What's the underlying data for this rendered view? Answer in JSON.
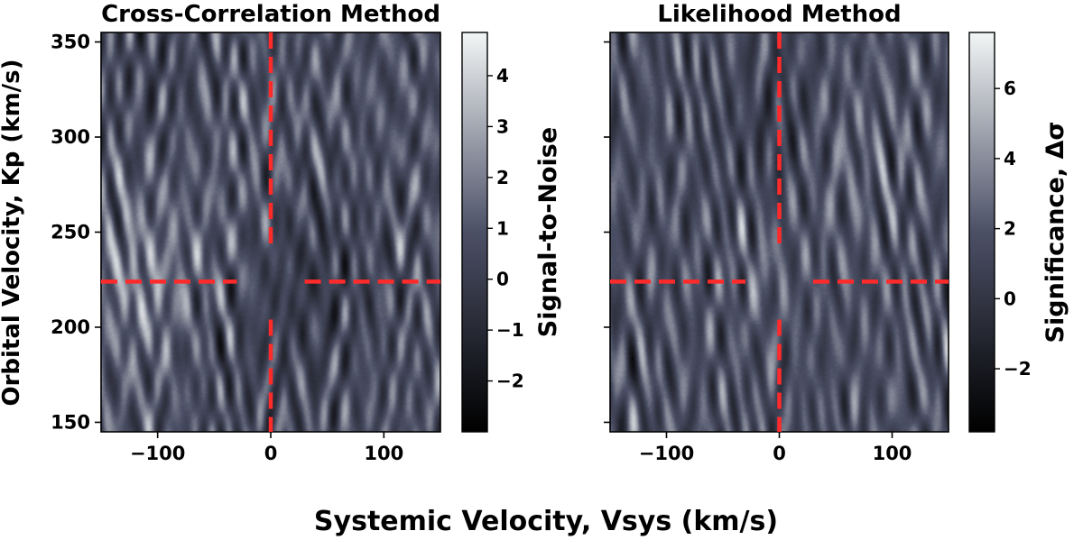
{
  "figure": {
    "xlabel": "Systemic Velocity, Vsys (km/s)",
    "ylabel": "Orbital Velocity, Kp (km/s)"
  },
  "colors": {
    "marker": "#ff2a2a",
    "cmap_dark": "#000000",
    "cmap_mid": "#4c5066",
    "cmap_light": "#f2f6f6"
  },
  "chart_data": [
    {
      "type": "heatmap",
      "title": "Cross-Correlation Method",
      "xlim": [
        -150,
        150
      ],
      "ylim": [
        145,
        355
      ],
      "xticks": [
        -100,
        0,
        100
      ],
      "xtick_labels": [
        "−100",
        "0",
        "100"
      ],
      "yticks": [
        150,
        200,
        250,
        300,
        350
      ],
      "ytick_labels": [
        "150",
        "200",
        "250",
        "300",
        "350"
      ],
      "marker": {
        "vsys": 0,
        "kp": 224,
        "gap_vsys": 30,
        "gap_kp": 20
      },
      "colorbar": {
        "label": "Signal-to-Noise",
        "min": -3.0,
        "max": 4.85,
        "ticks": [
          -2,
          -1,
          0,
          1,
          2,
          3,
          4
        ],
        "tick_labels": [
          "−2",
          "−1",
          "0",
          "1",
          "2",
          "3",
          "4"
        ]
      },
      "seed": 11
    },
    {
      "type": "heatmap",
      "title": "Likelihood Method",
      "xlim": [
        -150,
        150
      ],
      "ylim": [
        145,
        355
      ],
      "xticks": [
        -100,
        0,
        100
      ],
      "xtick_labels": [
        "−100",
        "0",
        "100"
      ],
      "yticks": [
        150,
        200,
        250,
        300,
        350
      ],
      "ytick_labels": [
        "",
        "",
        "",
        "",
        ""
      ],
      "marker": {
        "vsys": 0,
        "kp": 224,
        "gap_vsys": 30,
        "gap_kp": 20
      },
      "colorbar": {
        "label": "Significance, Δσ",
        "min": -3.8,
        "max": 7.6,
        "ticks": [
          -2,
          0,
          2,
          4,
          6
        ],
        "tick_labels": [
          "−2",
          "0",
          "2",
          "4",
          "6"
        ]
      },
      "seed": 29
    }
  ]
}
